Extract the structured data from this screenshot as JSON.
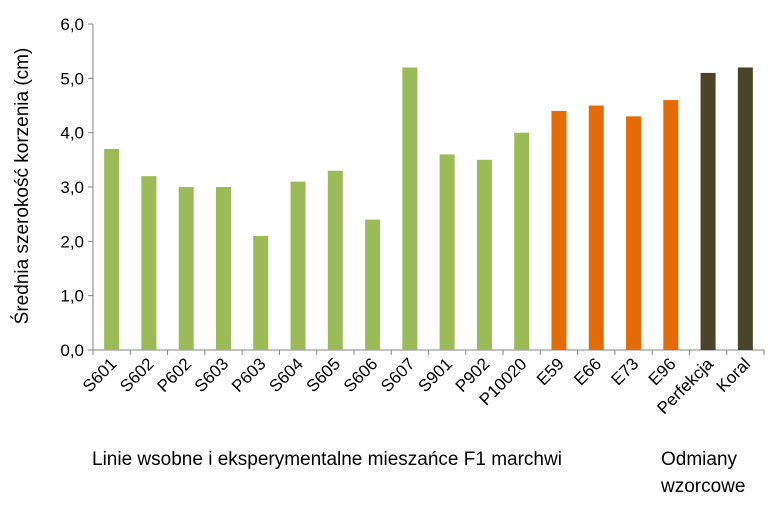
{
  "chart_data": {
    "type": "bar",
    "title": "",
    "xlabel": "",
    "ylabel": "Średnia szerokość korzenia (cm)",
    "ylim": [
      0,
      6
    ],
    "yticks": [
      "0,0",
      "1,0",
      "2,0",
      "3,0",
      "4,0",
      "5,0",
      "6,0"
    ],
    "categories": [
      "S601",
      "S602",
      "P602",
      "S603",
      "P603",
      "S604",
      "S605",
      "S606",
      "S607",
      "S901",
      "P902",
      "P10020",
      "E59",
      "E66",
      "E73",
      "E96",
      "Perfekcja",
      "Koral"
    ],
    "values": [
      3.7,
      3.2,
      3.0,
      3.0,
      2.1,
      3.1,
      3.3,
      2.4,
      5.2,
      3.6,
      3.5,
      4.0,
      4.4,
      4.5,
      4.3,
      4.6,
      5.1,
      5.2
    ],
    "bar_groups": [
      0,
      0,
      0,
      0,
      0,
      0,
      0,
      0,
      0,
      0,
      0,
      0,
      1,
      1,
      1,
      1,
      2,
      2
    ],
    "group_colors": [
      "#9bbb59",
      "#e36c09",
      "#4a452a"
    ],
    "grid": false,
    "group_labels": {
      "inbred": "Linie wsobne i eksperymentalne  mieszańce F1 marchwi",
      "reference_line1": "Odmiany",
      "reference_line2": "wzorcowe"
    }
  }
}
